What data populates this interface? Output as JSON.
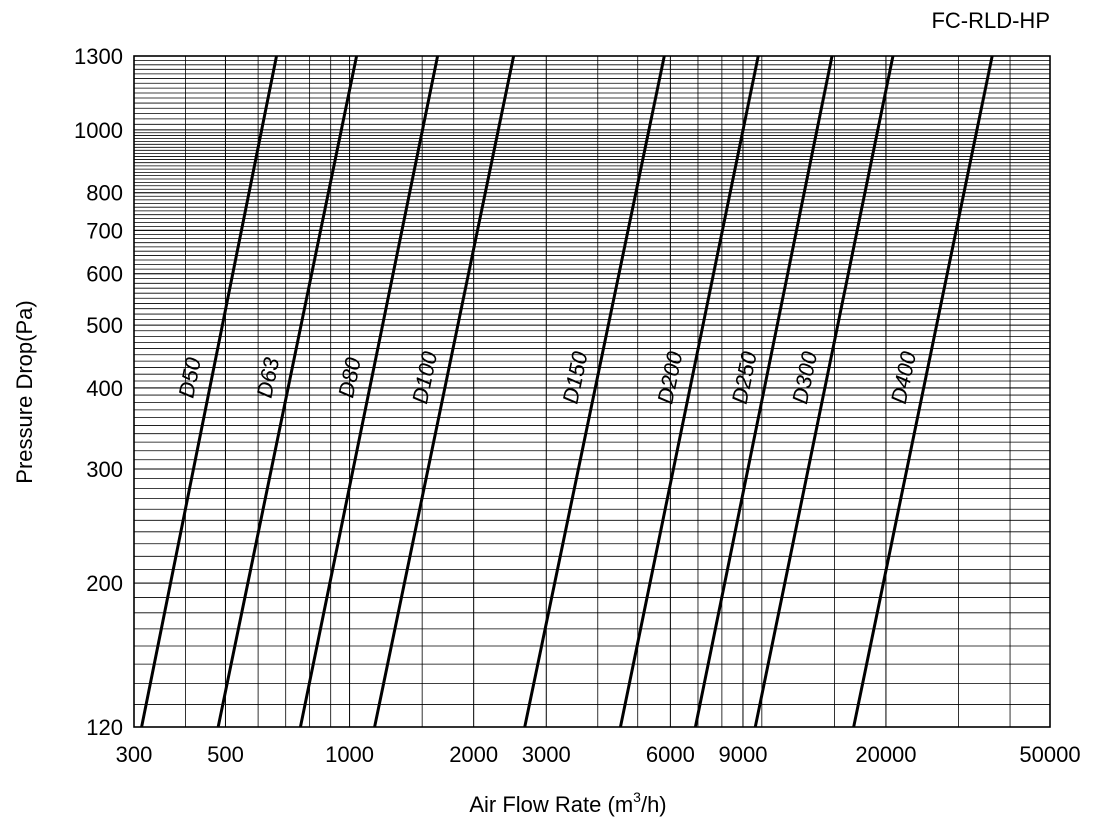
{
  "chart_data": {
    "type": "line",
    "title": "FC-RLD-HP",
    "xlabel": "Air Flow Rate (m",
    "xlabel_sup": "3",
    "xlabel_suffix": "/h)",
    "ylabel": "Pressure Drop(Pa)",
    "x_scale": "log",
    "y_scale": "log",
    "xlim": [
      300,
      50000
    ],
    "ylim": [
      120,
      1300
    ],
    "grid": true,
    "x_ticks": [
      {
        "value": 300,
        "label": "300"
      },
      {
        "value": 500,
        "label": "500"
      },
      {
        "value": 1000,
        "label": "1000"
      },
      {
        "value": 2000,
        "label": "2000"
      },
      {
        "value": 3000,
        "label": "3000"
      },
      {
        "value": 6000,
        "label": "6000"
      },
      {
        "value": 9000,
        "label": "9000"
      },
      {
        "value": 20000,
        "label": "20000"
      },
      {
        "value": 50000,
        "label": "50000"
      }
    ],
    "y_ticks": [
      {
        "value": 120,
        "label": "120"
      },
      {
        "value": 200,
        "label": "200"
      },
      {
        "value": 300,
        "label": "300"
      },
      {
        "value": 400,
        "label": "400"
      },
      {
        "value": 500,
        "label": "500"
      },
      {
        "value": 600,
        "label": "600"
      },
      {
        "value": 700,
        "label": "700"
      },
      {
        "value": 800,
        "label": "800"
      },
      {
        "value": 1000,
        "label": "1000"
      },
      {
        "value": 1300,
        "label": "1300"
      }
    ],
    "series": [
      {
        "name": "D50",
        "x": [
          313,
          665
        ],
        "y": [
          120,
          1300
        ]
      },
      {
        "name": "D63",
        "x": [
          480,
          1040
        ],
        "y": [
          120,
          1300
        ]
      },
      {
        "name": "D80",
        "x": [
          760,
          1635
        ],
        "y": [
          120,
          1300
        ]
      },
      {
        "name": "D100",
        "x": [
          1150,
          2500
        ],
        "y": [
          120,
          1300
        ]
      },
      {
        "name": "D150",
        "x": [
          2660,
          5800
        ],
        "y": [
          120,
          1300
        ]
      },
      {
        "name": "D200",
        "x": [
          4540,
          9800
        ],
        "y": [
          120,
          1300
        ]
      },
      {
        "name": "D250",
        "x": [
          6900,
          14800
        ],
        "y": [
          120,
          1300
        ]
      },
      {
        "name": "D300",
        "x": [
          9640,
          20800
        ],
        "y": [
          120,
          1300
        ]
      },
      {
        "name": "D400",
        "x": [
          16700,
          36200
        ],
        "y": [
          120,
          1300
        ]
      }
    ]
  }
}
